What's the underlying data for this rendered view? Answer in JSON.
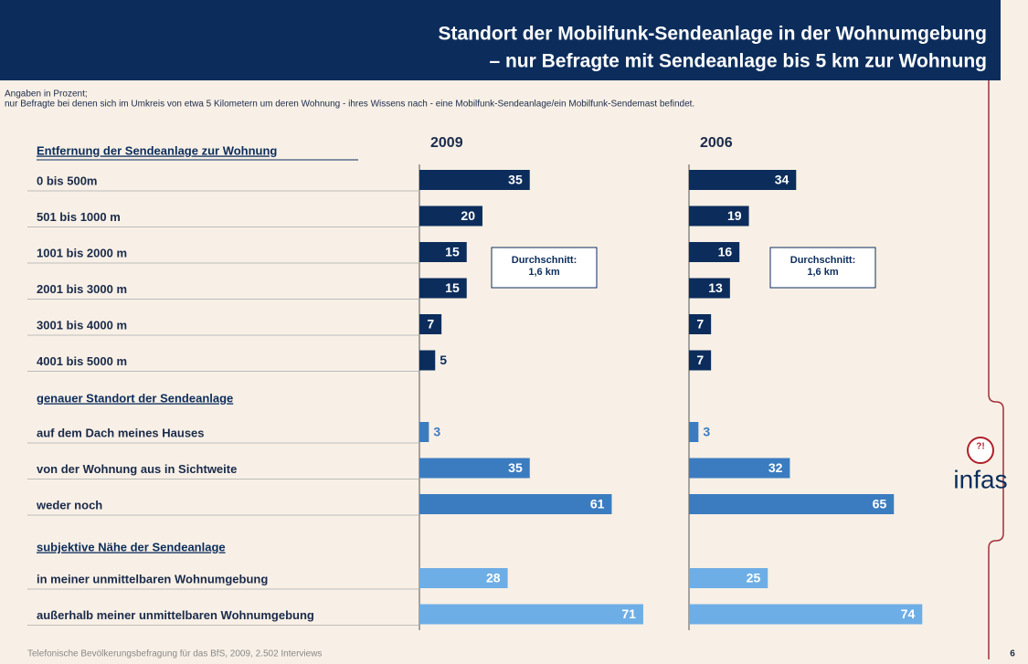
{
  "chart_data": {
    "type": "bar",
    "orientation": "horizontal",
    "title": [
      "Standort der Mobilfunk-Sendeanlage in der Wohnumgebung",
      "– nur Befragte mit Sendeanlage bis 5 km zur Wohnung"
    ],
    "notes": [
      "Angaben in Prozent;",
      "nur Befragte bei denen sich im Umkreis von etwa 5 Kilometern um deren Wohnung - ihres Wissens nach - eine Mobilfunk-Sendeanlage/ein Mobilfunk-Sendemast befindet."
    ],
    "series_names": [
      "2009",
      "2006"
    ],
    "xlim": [
      0,
      80
    ],
    "groups": [
      {
        "heading": "Entfernung der Sendeanlage zur Wohnung",
        "color": "#0c2d5c",
        "categories": [
          "0 bis 500m",
          "501 bis 1000 m",
          "1001 bis 2000 m",
          "2001 bis 3000 m",
          "3001 bis 4000 m",
          "4001 bis 5000 m"
        ],
        "series": [
          {
            "values": [
              35,
              20,
              15,
              15,
              7,
              5
            ]
          },
          {
            "values": [
              34,
              19,
              16,
              13,
              7,
              7
            ]
          }
        ]
      },
      {
        "heading": "genauer Standort der Sendeanlage",
        "color": "#3b7cc0",
        "categories": [
          "auf dem Dach meines Hauses",
          "von der Wohnung aus in Sichtweite",
          "weder noch"
        ],
        "series": [
          {
            "values": [
              3,
              35,
              61
            ]
          },
          {
            "values": [
              3,
              32,
              65
            ]
          }
        ]
      },
      {
        "heading": "subjektive Nähe der Sendeanlage",
        "color": "#6eaee6",
        "categories": [
          "in meiner unmittelbaren Wohnumgebung",
          "außerhalb meiner unmittelbaren Wohnumgebung"
        ],
        "series": [
          {
            "values": [
              28,
              71
            ]
          },
          {
            "values": [
              25,
              74
            ]
          }
        ]
      }
    ],
    "annotations": [
      {
        "lines": [
          "Durchschnitt:",
          "1,6 km"
        ]
      },
      {
        "lines": [
          "Durchschnitt:",
          "1,6 km"
        ]
      }
    ],
    "source": "Telefonische Bevölkerungsbefragung für das BfS, 2009, 2.502 Interviews",
    "page": 6,
    "logo": "infas",
    "logo_mark": "?!"
  }
}
